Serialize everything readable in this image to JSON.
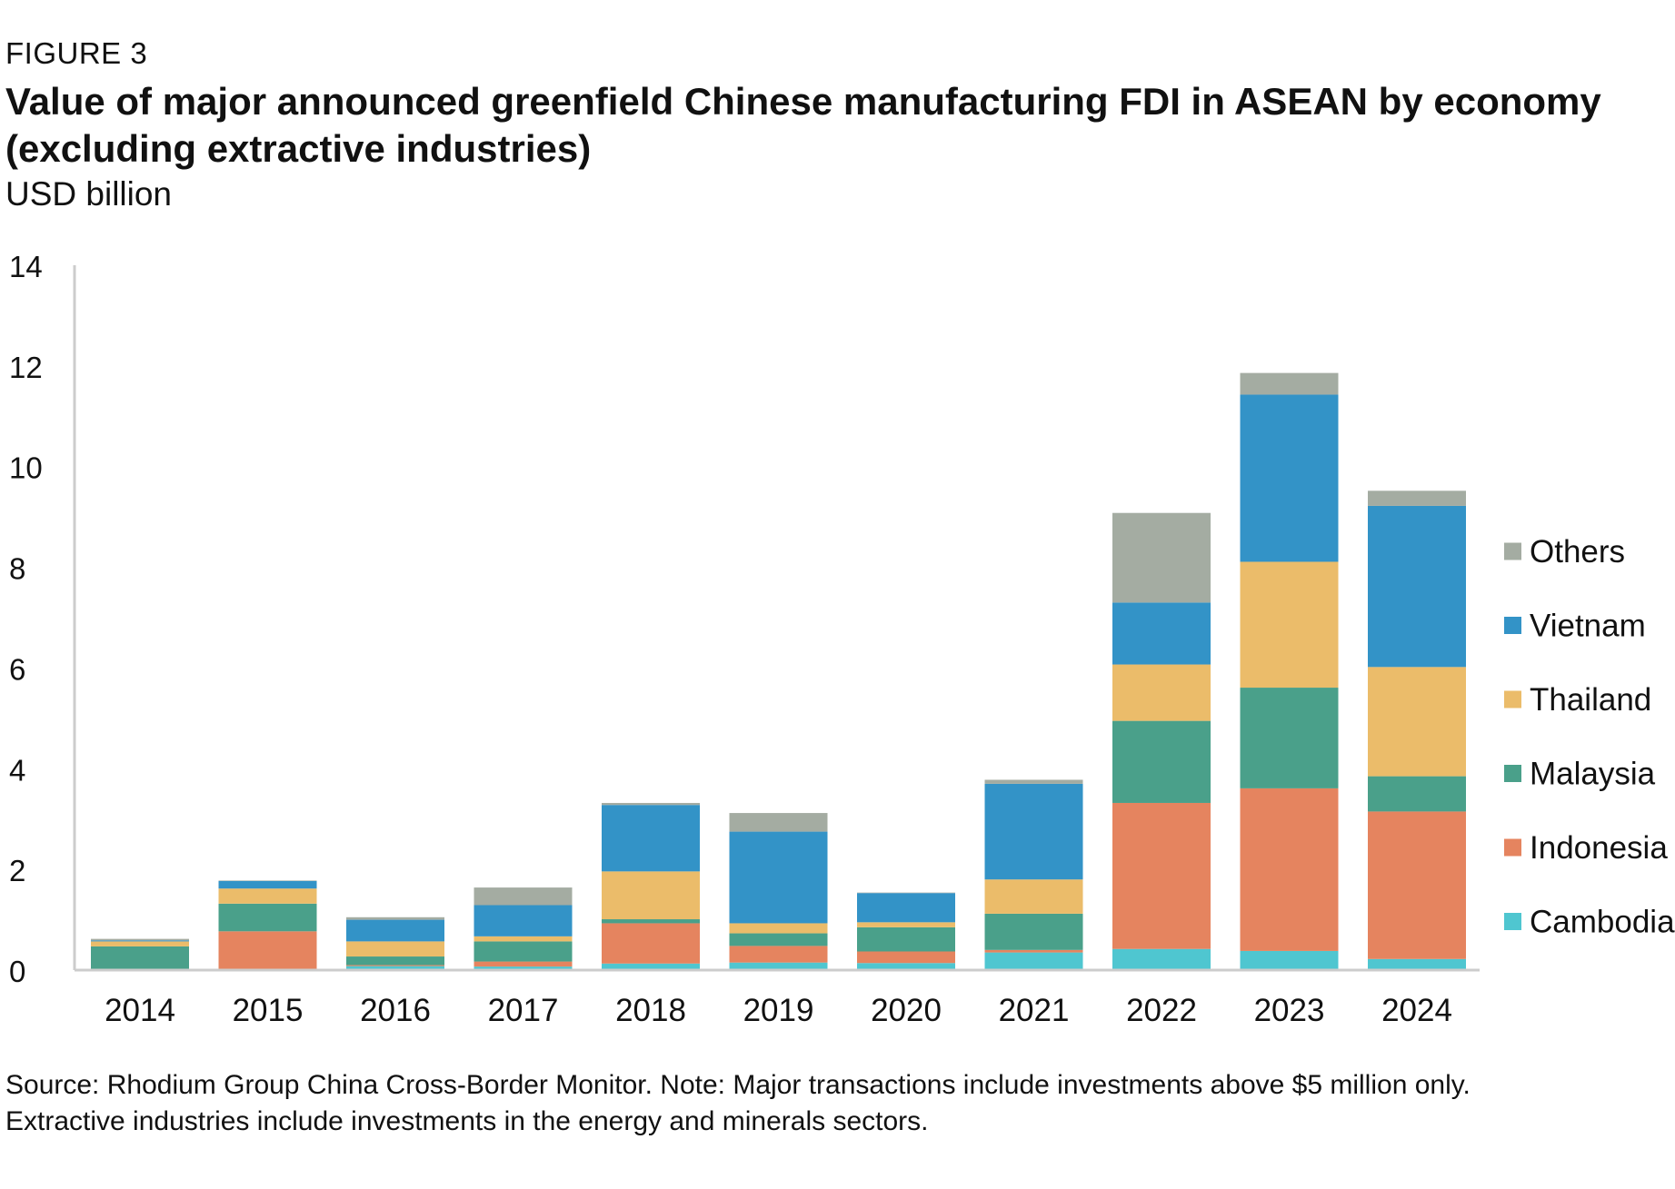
{
  "header": {
    "figure_label": "FIGURE 3",
    "title": "Value of major announced greenfield Chinese manufacturing FDI in ASEAN by economy (excluding extractive industries)",
    "unit": "USD billion"
  },
  "footer": {
    "note_line1": "Source: Rhodium Group China Cross-Border Monitor. Note: Major transactions include investments above $5 million only.",
    "note_line2": "Extractive industries include investments in the energy and minerals sectors."
  },
  "colors": {
    "Cambodia": "#4fc6d0",
    "Indonesia": "#e5845f",
    "Malaysia": "#4aa08a",
    "Thailand": "#ebbc6a",
    "Vietnam": "#3393c7",
    "Others": "#a4aca2",
    "axis": "#cccccc",
    "text": "#111111"
  },
  "chart_data": {
    "type": "bar",
    "stacked": true,
    "title": "Value of major announced greenfield Chinese manufacturing FDI in ASEAN by economy (excluding extractive industries)",
    "ylabel": "USD billion",
    "xlabel": "",
    "categories": [
      "2014",
      "2015",
      "2016",
      "2017",
      "2018",
      "2019",
      "2020",
      "2021",
      "2022",
      "2023",
      "2024"
    ],
    "ylim": [
      0,
      14
    ],
    "yticks": [
      0,
      2,
      4,
      6,
      8,
      10,
      12,
      14
    ],
    "grid": false,
    "legend_position": "right",
    "series": [
      {
        "name": "Cambodia",
        "values": [
          0.0,
          0.0,
          0.08,
          0.07,
          0.13,
          0.15,
          0.14,
          0.35,
          0.42,
          0.38,
          0.22
        ]
      },
      {
        "name": "Indonesia",
        "values": [
          0.02,
          0.77,
          0.02,
          0.1,
          0.8,
          0.33,
          0.23,
          0.05,
          2.9,
          3.23,
          2.93
        ]
      },
      {
        "name": "Malaysia",
        "values": [
          0.45,
          0.55,
          0.17,
          0.4,
          0.08,
          0.25,
          0.48,
          0.72,
          1.63,
          2.0,
          0.7
        ]
      },
      {
        "name": "Thailand",
        "values": [
          0.1,
          0.3,
          0.3,
          0.1,
          0.95,
          0.2,
          0.1,
          0.68,
          1.12,
          2.5,
          2.17
        ]
      },
      {
        "name": "Vietnam",
        "values": [
          0.02,
          0.15,
          0.43,
          0.62,
          1.32,
          1.82,
          0.58,
          1.9,
          1.23,
          3.32,
          3.2
        ]
      },
      {
        "name": "Others",
        "values": [
          0.03,
          0.01,
          0.05,
          0.35,
          0.04,
          0.37,
          0.01,
          0.08,
          1.78,
          0.43,
          0.3
        ]
      }
    ]
  }
}
